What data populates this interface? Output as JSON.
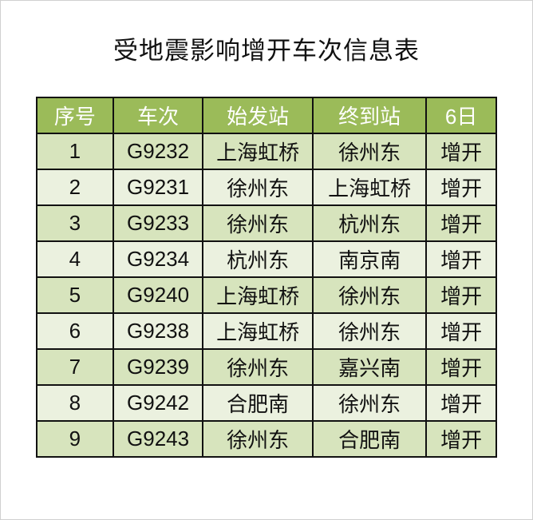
{
  "title": "受地震影响增开车次信息表",
  "colors": {
    "header": "#9bbb59",
    "row_odd": "#d7e4bd",
    "row_even": "#ebf1df"
  },
  "headers": [
    "序号",
    "车次",
    "始发站",
    "终到站",
    "6日"
  ],
  "rows": [
    [
      "1",
      "G9232",
      "上海虹桥",
      "徐州东",
      "增开"
    ],
    [
      "2",
      "G9231",
      "徐州东",
      "上海虹桥",
      "增开"
    ],
    [
      "3",
      "G9233",
      "徐州东",
      "杭州东",
      "增开"
    ],
    [
      "4",
      "G9234",
      "杭州东",
      "南京南",
      "增开"
    ],
    [
      "5",
      "G9240",
      "上海虹桥",
      "徐州东",
      "增开"
    ],
    [
      "6",
      "G9238",
      "上海虹桥",
      "徐州东",
      "增开"
    ],
    [
      "7",
      "G9239",
      "徐州东",
      "嘉兴南",
      "增开"
    ],
    [
      "8",
      "G9242",
      "合肥南",
      "徐州东",
      "增开"
    ],
    [
      "9",
      "G9243",
      "徐州东",
      "合肥南",
      "增开"
    ]
  ]
}
